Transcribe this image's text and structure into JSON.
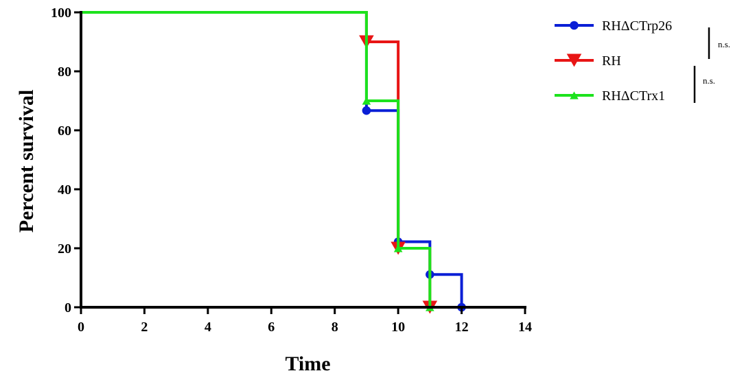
{
  "chart_data": {
    "type": "line",
    "subtype": "kaplan-meier-step",
    "title": "",
    "xlabel": "Time",
    "ylabel": "Percent survival",
    "xlim": [
      0,
      14
    ],
    "ylim": [
      0,
      100
    ],
    "xticks": [
      "0",
      "2",
      "4",
      "6",
      "8",
      "10",
      "12",
      "14"
    ],
    "yticks": [
      "0",
      "20",
      "40",
      "60",
      "80",
      "100"
    ],
    "grid": false,
    "legend_position": "top-right",
    "series": [
      {
        "name": "RHΔCTrp26",
        "color": "#0a1fd6",
        "marker": "circle",
        "x": [
          0,
          9,
          10,
          11,
          12
        ],
        "y": [
          100,
          66.7,
          22.2,
          11.1,
          0
        ]
      },
      {
        "name": "RH",
        "color": "#e81515",
        "marker": "triangle-down",
        "x": [
          0,
          9,
          10,
          11
        ],
        "y": [
          100,
          90,
          20,
          0
        ]
      },
      {
        "name": "RHΔCTrx1",
        "color": "#1de21d",
        "marker": "triangle-up",
        "x": [
          0,
          9,
          10,
          11
        ],
        "y": [
          100,
          70,
          20,
          0
        ]
      }
    ],
    "annotations": [
      "n.s.",
      "n.s."
    ]
  }
}
